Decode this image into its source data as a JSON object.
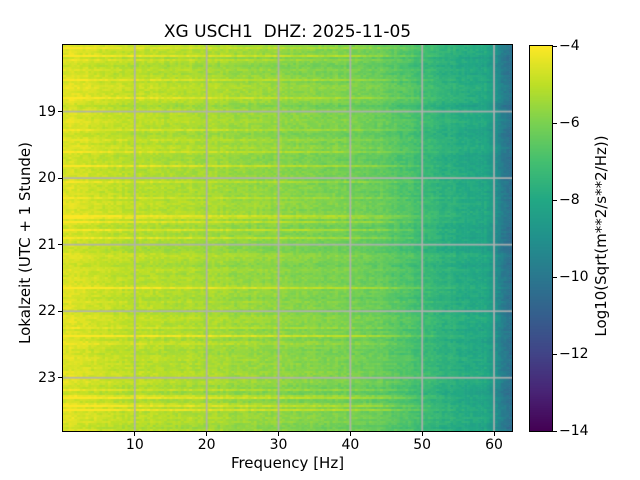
{
  "header": {
    "network": "XG",
    "station": "USCH1",
    "channel": "DHZ",
    "date": "2025-11-05"
  },
  "chart_data": {
    "type": "heatmap",
    "subtype": "spectrogram",
    "title": "XG USCH1  DHZ: 2025-11-05",
    "xlabel": "Frequency [Hz]",
    "ylabel": "Lokalzeit (UTC + 1 Stunde)",
    "colorbar_label": "Log10(Sqrt(m**2/s**2/Hz))",
    "x_range_hz": [
      0,
      62.5
    ],
    "x_ticks": [
      10,
      20,
      30,
      40,
      50,
      60
    ],
    "x_tick_labels": [
      "10",
      "20",
      "30",
      "40",
      "50",
      "60"
    ],
    "y_range_hours": [
      18.0,
      23.8
    ],
    "y_ticks_hours": [
      19,
      20,
      21,
      22,
      23
    ],
    "y_tick_labels": [
      "19",
      "20",
      "21",
      "22",
      "23"
    ],
    "value_range": [
      -14,
      -4
    ],
    "colorbar_ticks": [
      -4,
      -6,
      -8,
      -10,
      -12,
      -14
    ],
    "colorbar_tick_labels": [
      "−4",
      "−6",
      "−8",
      "−10",
      "−12",
      "−14"
    ],
    "colormap": "viridis",
    "colormap_stops": [
      [
        0.0,
        "#440154"
      ],
      [
        0.1,
        "#482475"
      ],
      [
        0.2,
        "#414487"
      ],
      [
        0.3,
        "#355f8d"
      ],
      [
        0.4,
        "#2a788e"
      ],
      [
        0.5,
        "#21918c"
      ],
      [
        0.6,
        "#22a884"
      ],
      [
        0.7,
        "#44bf70"
      ],
      [
        0.8,
        "#7ad151"
      ],
      [
        0.9,
        "#bddf26"
      ],
      [
        1.0,
        "#fde725"
      ]
    ],
    "grid": true,
    "grid_color": "#b0b0b0",
    "frame_color": "#000000",
    "background_color": "#ffffff",
    "freq_profile_hz": [
      0,
      1,
      2,
      3,
      5,
      8,
      10,
      15,
      20,
      25,
      30,
      35,
      40,
      44,
      48,
      50,
      53,
      56,
      59,
      60,
      61,
      62.5
    ],
    "freq_profile_log10": [
      -4.55,
      -4.5,
      -4.55,
      -4.65,
      -4.8,
      -4.95,
      -5.0,
      -5.15,
      -5.3,
      -5.5,
      -5.7,
      -5.9,
      -6.05,
      -6.3,
      -6.8,
      -7.1,
      -7.55,
      -7.85,
      -8.05,
      -8.7,
      -9.6,
      -10.3
    ],
    "texture": {
      "freq_bins": 160,
      "time_bins": 193,
      "cell_noise": 0.25,
      "row_noise": 0.18,
      "bright_row_fraction": 0.16,
      "bright_row_min_boost": 0.3,
      "bright_row_max_boost": 0.95,
      "dark_row_fraction": 0.05,
      "dark_row_dip": -0.3,
      "column_noise": 0.09,
      "seed": 42
    }
  }
}
